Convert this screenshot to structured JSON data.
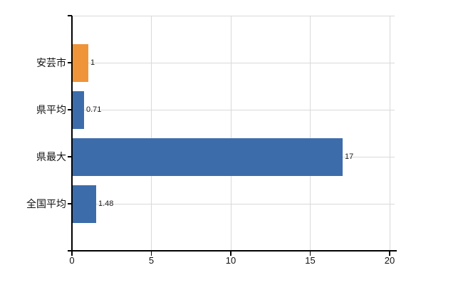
{
  "chart_data": {
    "type": "bar",
    "orientation": "horizontal",
    "title": "",
    "xlabel": "",
    "ylabel": "",
    "categories": [
      "安芸市",
      "県平均",
      "県最大",
      "全国平均"
    ],
    "values": [
      1,
      0.71,
      17,
      1.48
    ],
    "value_labels": [
      "1",
      "0.71",
      "17",
      "1.48"
    ],
    "bar_colors": [
      "#ef9439",
      "#3d6cab",
      "#3d6cab",
      "#3d6cab"
    ],
    "xlim": [
      0,
      20
    ],
    "x_ticks": [
      0,
      5,
      10,
      15,
      20
    ],
    "x_tick_labels": [
      "0",
      "5",
      "10",
      "15",
      "20"
    ],
    "grid": true,
    "legend": "none",
    "colors": {
      "gridline": "#d9d9d9",
      "axis": "#000000",
      "text": "#111111",
      "background": "#ffffff"
    }
  }
}
